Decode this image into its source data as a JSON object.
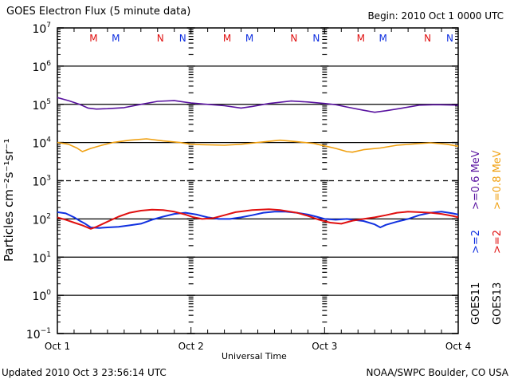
{
  "header": {
    "title": "GOES Electron Flux (5 minute data)",
    "begin": "Begin: 2010 Oct 1 0000 UTC"
  },
  "footer": {
    "updated": "Updated 2010 Oct  3 23:56:14 UTC",
    "credit": "NOAA/SWPC Boulder, CO USA"
  },
  "colors": {
    "goes11_06": "#5a14a0",
    "goes13_08": "#f0a010",
    "goes11_2": "#1030e0",
    "goes13_2": "#e01010"
  },
  "chart_data": {
    "type": "line",
    "title": "GOES Electron Flux (5 minute data)",
    "xlabel": "Universal Time",
    "ylabel": "Particles cm⁻²s⁻¹sr⁻¹",
    "yscale": "log",
    "ylim": [
      0.1,
      10000000
    ],
    "xlim_hours": [
      0,
      72
    ],
    "x_ticks": [
      {
        "hour": 0,
        "label": "Oct 1"
      },
      {
        "hour": 24,
        "label": "Oct 2"
      },
      {
        "hour": 48,
        "label": "Oct 3"
      },
      {
        "hour": 72,
        "label": "Oct 4"
      }
    ],
    "y_ticks": [
      {
        "exp": 7,
        "label": "10",
        "sup": "7"
      },
      {
        "exp": 6,
        "label": "10",
        "sup": "6"
      },
      {
        "exp": 5,
        "label": "10",
        "sup": "5"
      },
      {
        "exp": 4,
        "label": "10",
        "sup": "4"
      },
      {
        "exp": 3,
        "label": "10",
        "sup": "3"
      },
      {
        "exp": 2,
        "label": "10",
        "sup": "2"
      },
      {
        "exp": 1,
        "label": "10",
        "sup": "1"
      },
      {
        "exp": 0,
        "label": "10",
        "sup": "0"
      },
      {
        "exp": -1,
        "label": "10",
        "sup": "−1"
      }
    ],
    "dashed_gridline_exp": 3,
    "solid_gridline_exps": [
      6,
      5,
      4,
      2,
      1,
      0
    ],
    "markers": [
      {
        "hour": 6.5,
        "label": "M",
        "color": "#e01010"
      },
      {
        "hour": 10.5,
        "label": "M",
        "color": "#1030e0"
      },
      {
        "hour": 18.5,
        "label": "N",
        "color": "#e01010"
      },
      {
        "hour": 22.5,
        "label": "N",
        "color": "#1030e0"
      },
      {
        "hour": 30.5,
        "label": "M",
        "color": "#e01010"
      },
      {
        "hour": 34.5,
        "label": "M",
        "color": "#1030e0"
      },
      {
        "hour": 42.5,
        "label": "N",
        "color": "#e01010"
      },
      {
        "hour": 46.5,
        "label": "N",
        "color": "#1030e0"
      },
      {
        "hour": 54.5,
        "label": "M",
        "color": "#e01010"
      },
      {
        "hour": 58.5,
        "label": "M",
        "color": "#1030e0"
      },
      {
        "hour": 66.5,
        "label": "N",
        "color": "#e01010"
      },
      {
        "hour": 70.5,
        "label": "N",
        "color": "#1030e0"
      }
    ],
    "legend": [
      {
        "satellite": "GOES11",
        "text": ">=0.6 MeV",
        "color": "#5a14a0"
      },
      {
        "satellite": "GOES13",
        "text": ">=0.8 MeV",
        "color": "#f0a010"
      },
      {
        "satellite": "GOES11",
        "text": ">=2",
        "color": "#1030e0"
      },
      {
        "satellite": "GOES13",
        "text": ">=2",
        "color": "#e01010"
      }
    ],
    "series": [
      {
        "name": "GOES11 >=0.6 MeV",
        "color": "#5a14a0",
        "x_hours": [
          0,
          2,
          4,
          5.5,
          7,
          9,
          12,
          15,
          18,
          21,
          24,
          27,
          30,
          33,
          35,
          38,
          42,
          45,
          48,
          50,
          52,
          55,
          57,
          59,
          62,
          65,
          68,
          72
        ],
        "values": [
          150000,
          125000,
          100000,
          80000,
          75000,
          77000,
          82000,
          100000,
          120000,
          125000,
          108000,
          100000,
          92000,
          80000,
          88000,
          105000,
          122000,
          115000,
          105000,
          98000,
          85000,
          70000,
          62000,
          68000,
          80000,
          95000,
          98000,
          95000
        ]
      },
      {
        "name": "GOES13 >=0.8 MeV",
        "color": "#f0a010",
        "x_hours": [
          0,
          2,
          3.5,
          4.5,
          6,
          8,
          10,
          13,
          16,
          19,
          22,
          24,
          26,
          30,
          33,
          36,
          40,
          43,
          46,
          48,
          50,
          52,
          53,
          55,
          58,
          61,
          64,
          67,
          70,
          72
        ],
        "values": [
          10000,
          9000,
          7200,
          5800,
          7000,
          8500,
          10000,
          11500,
          12500,
          11000,
          10000,
          9000,
          8800,
          8500,
          9000,
          10000,
          11500,
          10500,
          9500,
          8200,
          7000,
          5800,
          5600,
          6500,
          7200,
          8500,
          9200,
          9800,
          9000,
          8000
        ]
      },
      {
        "name": "GOES11 >=2 MeV",
        "color": "#1030e0",
        "x_hours": [
          0,
          1.5,
          3,
          4,
          5,
          6,
          7.5,
          9,
          11,
          13,
          15,
          17,
          19,
          21,
          23,
          25,
          27,
          29,
          31,
          33,
          35,
          37,
          39,
          41,
          43,
          45,
          46.5,
          48,
          50,
          52,
          53,
          55,
          57,
          58,
          59,
          61,
          63,
          65,
          67,
          69,
          71,
          72
        ],
        "values": [
          150.0,
          140,
          110,
          90,
          75,
          60,
          58,
          60,
          62,
          68,
          75,
          95,
          115,
          135,
          145,
          130,
          110,
          100,
          100,
          110,
          125,
          145,
          155,
          155,
          145,
          130,
          115,
          100,
          95,
          100,
          95,
          88,
          72,
          60,
          70,
          85,
          100,
          125,
          145,
          155,
          140,
          130
        ]
      },
      {
        "name": "GOES13 >=2 MeV",
        "color": "#e01010",
        "x_hours": [
          0,
          1.5,
          3,
          4.5,
          6,
          7,
          9,
          11,
          13,
          15,
          17,
          19,
          21,
          23,
          24.5,
          26,
          28,
          30,
          32,
          35,
          38,
          40,
          43,
          45,
          47,
          49,
          51,
          53,
          55,
          57,
          59,
          61,
          63,
          65,
          67,
          69,
          71,
          72
        ],
        "values": [
          110,
          95,
          80,
          68,
          55,
          62,
          85,
          115,
          145,
          165,
          175,
          170,
          155,
          130,
          110,
          100,
          105,
          125,
          150,
          170,
          180,
          170,
          145,
          120,
          95,
          80,
          75,
          90,
          100,
          110,
          125,
          145,
          155,
          150,
          145,
          135,
          120,
          110
        ]
      }
    ]
  }
}
